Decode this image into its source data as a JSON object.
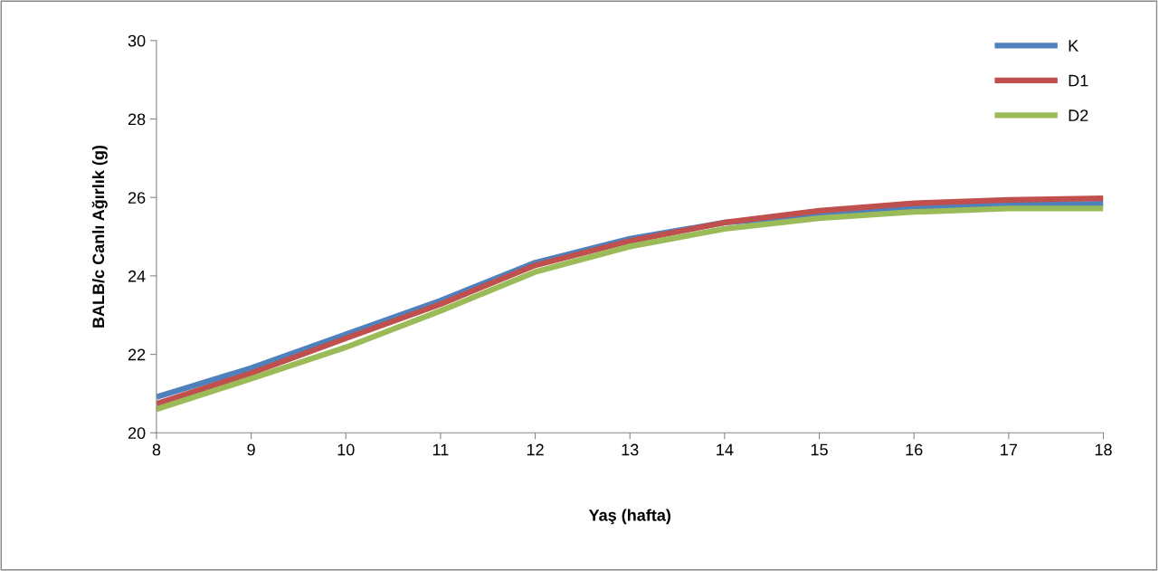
{
  "chart_data": {
    "type": "line",
    "xlabel": "Yaş (hafta)",
    "ylabel": "BALB/c Canlı Ağırlık (g)",
    "x": [
      8,
      9,
      10,
      11,
      12,
      13,
      14,
      15,
      16,
      17,
      18
    ],
    "series": [
      {
        "name": "K",
        "color": "#4f81bd",
        "values": [
          20.91,
          21.65,
          22.51,
          23.37,
          24.34,
          24.95,
          25.36,
          25.54,
          25.74,
          25.82,
          25.84
        ]
      },
      {
        "name": "D1",
        "color": "#c0504d",
        "values": [
          20.74,
          21.52,
          22.41,
          23.28,
          24.27,
          24.89,
          25.36,
          25.66,
          25.85,
          25.94,
          25.98
        ]
      },
      {
        "name": "D2",
        "color": "#9bbb59",
        "values": [
          20.6,
          21.38,
          22.18,
          23.11,
          24.1,
          24.75,
          25.2,
          25.47,
          25.63,
          25.72,
          25.72
        ]
      }
    ],
    "xlim": [
      8,
      18
    ],
    "ylim": [
      20,
      30
    ],
    "xticks": [
      8,
      9,
      10,
      11,
      12,
      13,
      14,
      15,
      16,
      17,
      18
    ],
    "yticks": [
      20,
      22,
      24,
      26,
      28,
      30
    ],
    "grid": false,
    "legend": "top right",
    "marker": "none",
    "line_style": "solid"
  }
}
